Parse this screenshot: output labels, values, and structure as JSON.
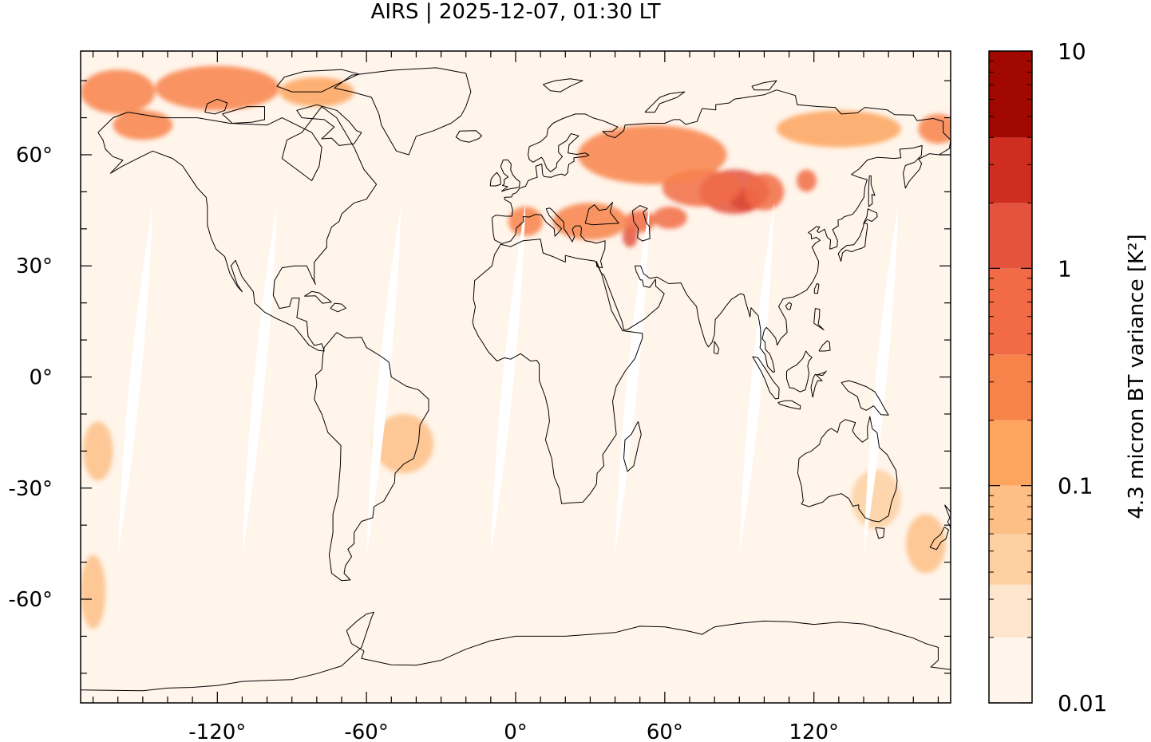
{
  "title": "AIRS | 2025-12-07, 01:30 LT",
  "map": {
    "projection": "equirectangular",
    "lon_range": [
      -175,
      175
    ],
    "lat_range": [
      -88,
      88
    ],
    "x_ticks": [
      {
        "value": -120,
        "label": "-120°"
      },
      {
        "value": -60,
        "label": "-60°"
      },
      {
        "value": 0,
        "label": "0°"
      },
      {
        "value": 60,
        "label": "60°"
      },
      {
        "value": 120,
        "label": "120°"
      }
    ],
    "y_ticks": [
      {
        "value": 60,
        "label": "60°"
      },
      {
        "value": 30,
        "label": "30°"
      },
      {
        "value": 0,
        "label": "0°"
      },
      {
        "value": -30,
        "label": "-30°"
      },
      {
        "value": -60,
        "label": "-60°"
      }
    ],
    "background_color": "#fff5eb",
    "gap_color": "#ffffff",
    "coastline_color": "#000000"
  },
  "colorbar": {
    "label": "4.3 micron BT variance [K²]",
    "scale": "log",
    "range": [
      0.01,
      10
    ],
    "tick_labels": [
      {
        "value": 10,
        "label": "10"
      },
      {
        "value": 1,
        "label": "1"
      },
      {
        "value": 0.1,
        "label": "0.1"
      },
      {
        "value": 0.01,
        "label": "0.01"
      }
    ],
    "levels": [
      0.01,
      0.02,
      0.035,
      0.06,
      0.1,
      0.2,
      0.4,
      1,
      2,
      4,
      10
    ],
    "colors": [
      "#fff5eb",
      "#fee6ce",
      "#fdd0a2",
      "#fdbf86",
      "#fda55e",
      "#f8834a",
      "#f16c46",
      "#e4533e",
      "#cf2d1f",
      "#a00800"
    ]
  },
  "chart_data": {
    "type": "heatmap",
    "title": "AIRS | 2025-12-07, 01:30 LT",
    "xlabel": "",
    "ylabel": "",
    "xlim": [
      -175,
      175
    ],
    "ylim": [
      -88,
      88
    ],
    "x_ticks": [
      -120,
      -60,
      0,
      60,
      120
    ],
    "y_ticks": [
      -60,
      -30,
      0,
      30,
      60
    ],
    "color_scale": "log",
    "color_range": [
      0.01,
      10
    ],
    "colorbar_label": "4.3 micron BT variance [K²]",
    "data_gaps": [
      {
        "lat_range": [
          -48,
          47
        ],
        "lon_at_south": -160,
        "lon_at_north": -146
      },
      {
        "lat_range": [
          -48,
          47
        ],
        "lon_at_south": -110,
        "lon_at_north": -96
      },
      {
        "lat_range": [
          -48,
          47
        ],
        "lon_at_south": -60,
        "lon_at_north": -46
      },
      {
        "lat_range": [
          -48,
          47
        ],
        "lon_at_south": -10,
        "lon_at_north": 4
      },
      {
        "lat_range": [
          -48,
          47
        ],
        "lon_at_south": 40,
        "lon_at_north": 54
      },
      {
        "lat_range": [
          -48,
          47
        ],
        "lon_at_south": 90,
        "lon_at_north": 104
      },
      {
        "lat_range": [
          -48,
          47
        ],
        "lon_at_south": 140,
        "lon_at_north": 154
      }
    ],
    "hotspots": [
      {
        "lon": 92,
        "lat": 48,
        "value": 4.0,
        "lon_radius": 6,
        "lat_radius": 3
      },
      {
        "lon": 88,
        "lat": 50,
        "value": 1.2,
        "lon_radius": 14,
        "lat_radius": 6
      },
      {
        "lon": 100,
        "lat": 50,
        "value": 0.8,
        "lon_radius": 8,
        "lat_radius": 5
      },
      {
        "lon": 117,
        "lat": 53,
        "value": 0.5,
        "lon_radius": 4,
        "lat_radius": 3
      },
      {
        "lon": 75,
        "lat": 51,
        "value": 0.5,
        "lon_radius": 16,
        "lat_radius": 5
      },
      {
        "lon": 46,
        "lat": 38,
        "value": 1.2,
        "lon_radius": 3,
        "lat_radius": 3
      },
      {
        "lon": 50,
        "lat": 42,
        "value": 0.45,
        "lon_radius": 6,
        "lat_radius": 3
      },
      {
        "lon": 62,
        "lat": 43,
        "value": 0.45,
        "lon_radius": 7,
        "lat_radius": 3
      },
      {
        "lon": 30,
        "lat": 42,
        "value": 0.3,
        "lon_radius": 15,
        "lat_radius": 5
      },
      {
        "lon": 4,
        "lat": 42,
        "value": 0.3,
        "lon_radius": 7,
        "lat_radius": 4
      },
      {
        "lon": 55,
        "lat": 60,
        "value": 0.2,
        "lon_radius": 30,
        "lat_radius": 8
      },
      {
        "lon": 130,
        "lat": 67,
        "value": 0.15,
        "lon_radius": 25,
        "lat_radius": 5
      },
      {
        "lon": -120,
        "lat": 78,
        "value": 0.35,
        "lon_radius": 25,
        "lat_radius": 6
      },
      {
        "lon": -160,
        "lat": 77,
        "value": 0.3,
        "lon_radius": 15,
        "lat_radius": 6
      },
      {
        "lon": -80,
        "lat": 77,
        "value": 0.15,
        "lon_radius": 15,
        "lat_radius": 4
      },
      {
        "lon": -150,
        "lat": 68,
        "value": 0.2,
        "lon_radius": 12,
        "lat_radius": 4
      },
      {
        "lon": -45,
        "lat": -18,
        "value": 0.07,
        "lon_radius": 12,
        "lat_radius": 8
      },
      {
        "lon": -168,
        "lat": -20,
        "value": 0.07,
        "lon_radius": 6,
        "lat_radius": 8
      },
      {
        "lon": -170,
        "lat": -58,
        "value": 0.06,
        "lon_radius": 5,
        "lat_radius": 10
      },
      {
        "lon": 165,
        "lat": -45,
        "value": 0.07,
        "lon_radius": 8,
        "lat_radius": 8
      },
      {
        "lon": 145,
        "lat": -33,
        "value": 0.05,
        "lon_radius": 10,
        "lat_radius": 8
      },
      {
        "lon": 170,
        "lat": 67,
        "value": 0.25,
        "lon_radius": 8,
        "lat_radius": 4
      }
    ]
  }
}
